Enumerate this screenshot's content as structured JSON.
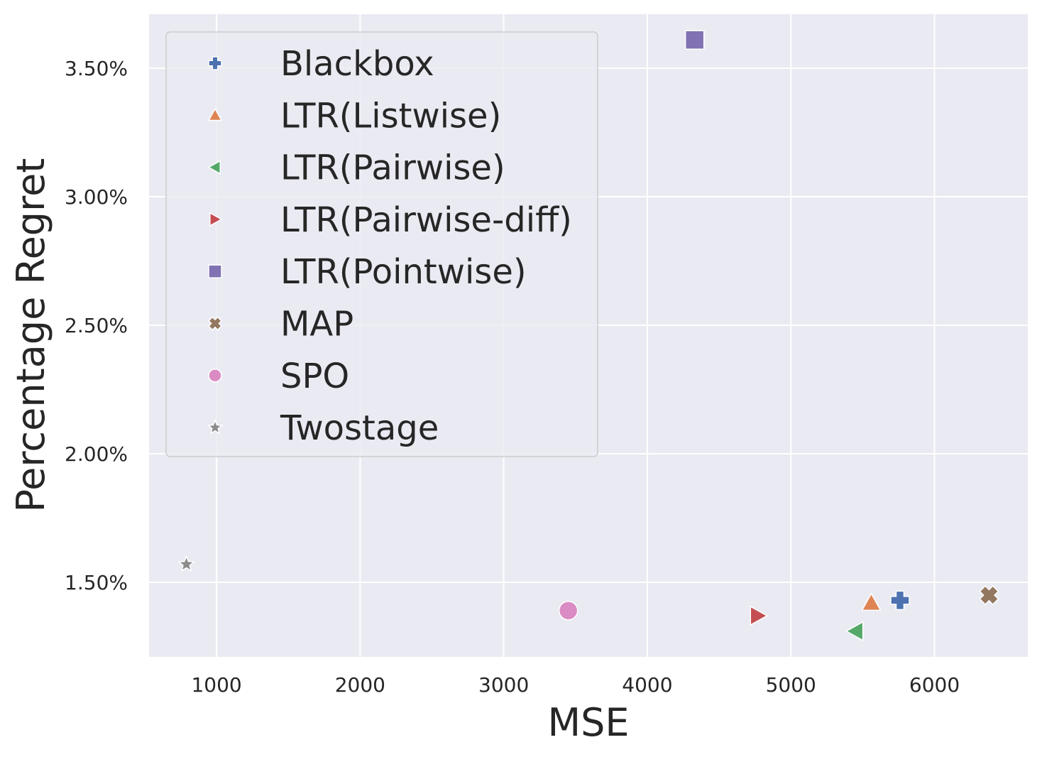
{
  "chart_data": {
    "type": "scatter",
    "xlabel": "MSE",
    "ylabel": "Percentage Regret",
    "xlim": [
      530,
      6650
    ],
    "ylim": [
      1.21,
      3.71
    ],
    "xticks": [
      1000,
      2000,
      3000,
      4000,
      5000,
      6000
    ],
    "xtick_labels": [
      "1000",
      "2000",
      "3000",
      "4000",
      "5000",
      "6000"
    ],
    "yticks": [
      1.5,
      2.0,
      2.5,
      3.0,
      3.5
    ],
    "ytick_labels": [
      "1.50%",
      "2.00%",
      "2.50%",
      "3.00%",
      "3.50%"
    ],
    "grid": true,
    "legend_position": "top-left",
    "series": [
      {
        "name": "Blackbox",
        "marker": "plus",
        "color": "#4c72b0",
        "x": 5760,
        "y": 1.43
      },
      {
        "name": "LTR(Listwise)",
        "marker": "triangle-up",
        "color": "#dd8452",
        "x": 5560,
        "y": 1.42
      },
      {
        "name": "LTR(Pairwise)",
        "marker": "triangle-left",
        "color": "#55a868",
        "x": 5450,
        "y": 1.31
      },
      {
        "name": "LTR(Pairwise-diff)",
        "marker": "triangle-right",
        "color": "#c44e52",
        "x": 4770,
        "y": 1.37
      },
      {
        "name": "LTR(Pointwise)",
        "marker": "square",
        "color": "#8172b3",
        "x": 4330,
        "y": 3.61
      },
      {
        "name": "MAP",
        "marker": "x",
        "color": "#937860",
        "x": 6380,
        "y": 1.45
      },
      {
        "name": "SPO",
        "marker": "circle",
        "color": "#da8bc3",
        "x": 3450,
        "y": 1.39
      },
      {
        "name": "Twostage",
        "marker": "star",
        "color": "#8c8c8c",
        "x": 790,
        "y": 1.57
      }
    ]
  }
}
